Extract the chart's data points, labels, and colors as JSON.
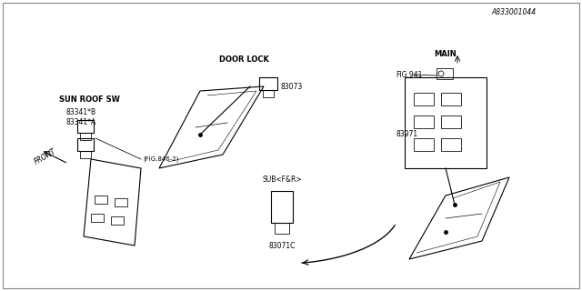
{
  "title": "",
  "bg_color": "#ffffff",
  "line_color": "#000000",
  "diagram_color": "#aaaaaa",
  "part_color": "#888888",
  "labels": {
    "fig_ref": "(FIG.846-2)",
    "part_83071C": "83071C",
    "sub_label": "SUB<F&R>",
    "part_83341A": "83341*A",
    "part_83341B": "83341*B",
    "sun_roof": "SUN ROOF SW",
    "front": "FRONT",
    "part_83073": "83073",
    "door_lock": "DOOR LOCK",
    "part_83071": "83071",
    "fig941": "FIG.941",
    "main": "MAIN",
    "part_id": "A833001044"
  }
}
